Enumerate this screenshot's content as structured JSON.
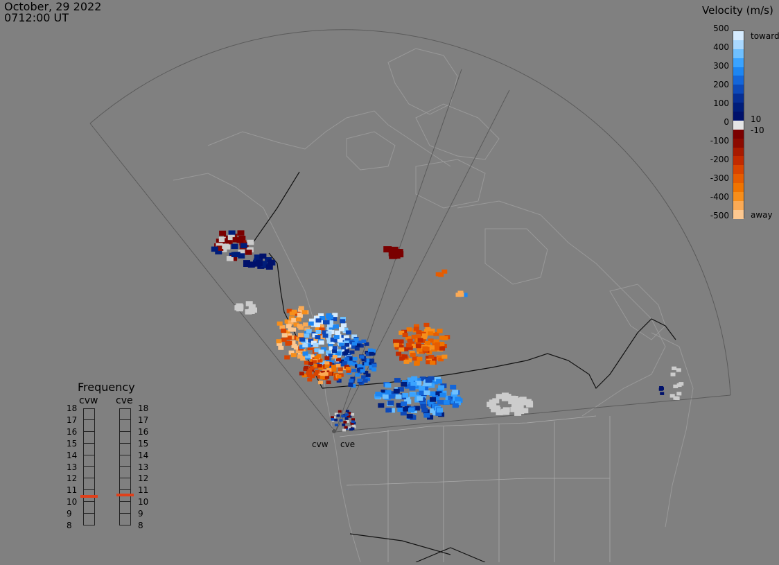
{
  "header": {
    "date": "October, 29 2022",
    "time": "0712:00 UT"
  },
  "colorbar": {
    "title": "Velocity (m/s)",
    "ticks": [
      "500",
      "400",
      "300",
      "200",
      "100",
      "0",
      "-100",
      "-200",
      "-300",
      "-400",
      "-500"
    ],
    "top_label": "toward",
    "bottom_label": "away",
    "mid_pos_label": "10",
    "mid_neg_label": "-10",
    "colors_toward": [
      "#d6ecff",
      "#a9d8ff",
      "#6fc0ff",
      "#3aa3ff",
      "#1d86f2",
      "#1466d9",
      "#0d49b8",
      "#062e94",
      "#001d7a",
      "#00116b"
    ],
    "colors_away": [
      "#7a0000",
      "#8c0a00",
      "#a81a00",
      "#c22a00",
      "#d94400",
      "#e65c00",
      "#f07400",
      "#f78e1a",
      "#fbaa55",
      "#fdc890"
    ],
    "zero_color": "#e5e5e5"
  },
  "frequency": {
    "title": "Frequency",
    "sites": [
      {
        "name": "cvw",
        "active": 10.5
      },
      {
        "name": "cve",
        "active": 10.6
      }
    ],
    "values": [
      "18",
      "17",
      "16",
      "15",
      "14",
      "13",
      "12",
      "11",
      "10",
      "9",
      "8"
    ],
    "marker_color": "#e0401a"
  },
  "radar_sites": [
    "cvw",
    "cve"
  ],
  "map": {
    "land_color": "#808080",
    "border_color": "#aaaaaa",
    "fov_color": "#5a5a5a",
    "no_data_color": "#cccccc"
  }
}
